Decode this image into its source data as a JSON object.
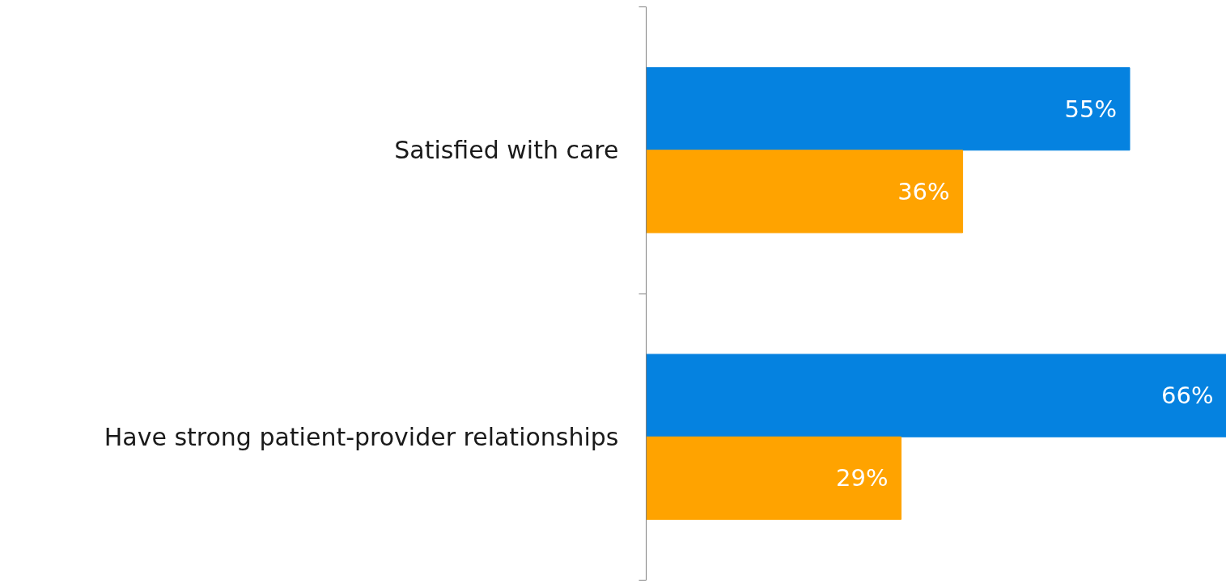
{
  "chart_data": {
    "type": "bar",
    "orientation": "horizontal",
    "categories": [
      "Satisfied with care",
      "Have strong patient-provider relationships"
    ],
    "series": [
      {
        "color": "#0582e0",
        "values": [
          55,
          66
        ],
        "value_labels": [
          "55%",
          "66%"
        ]
      },
      {
        "color": "#ffa300",
        "values": [
          36,
          29
        ],
        "value_labels": [
          "36%",
          "29%"
        ]
      }
    ],
    "tick_labels": "y",
    "grid": false
  }
}
